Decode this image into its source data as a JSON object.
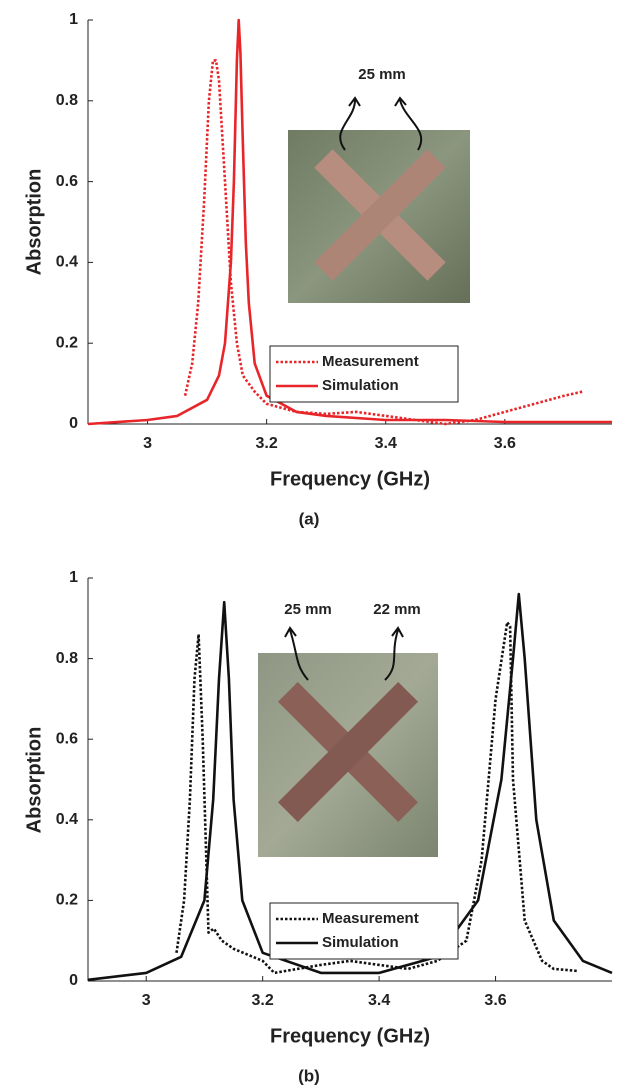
{
  "chart_data": [
    {
      "type": "line",
      "x_label": "Frequency (GHz)",
      "y_label": "Absorption",
      "caption": "(a)",
      "xlim": [
        2.9,
        3.78
      ],
      "xticks": [
        3,
        3.2,
        3.4,
        3.6
      ],
      "ylim": [
        0,
        1
      ],
      "yticks": [
        0,
        0.2,
        0.4,
        0.6,
        0.8,
        1
      ],
      "grid": false,
      "legend": "lower center",
      "annotations": [
        "25 mm"
      ],
      "series": [
        {
          "name": "Measurement",
          "color": "#e8262a",
          "style": "dotted",
          "x": [
            3.063,
            3.075,
            3.085,
            3.095,
            3.103,
            3.11,
            3.115,
            3.12,
            3.13,
            3.14,
            3.15,
            3.16,
            3.18,
            3.2,
            3.25,
            3.3,
            3.35,
            3.4,
            3.45,
            3.5,
            3.55,
            3.6,
            3.65,
            3.7,
            3.73
          ],
          "values": [
            0.07,
            0.15,
            0.3,
            0.55,
            0.8,
            0.9,
            0.9,
            0.85,
            0.6,
            0.35,
            0.2,
            0.12,
            0.08,
            0.05,
            0.03,
            0.025,
            0.03,
            0.02,
            0.01,
            0.0,
            0.01,
            0.03,
            0.05,
            0.07,
            0.08
          ]
        },
        {
          "name": "Simulation",
          "color": "#e8262a",
          "style": "solid",
          "x": [
            2.9,
            3.0,
            3.05,
            3.1,
            3.12,
            3.13,
            3.14,
            3.145,
            3.15,
            3.153,
            3.156,
            3.16,
            3.165,
            3.17,
            3.18,
            3.2,
            3.25,
            3.3,
            3.4,
            3.5,
            3.6,
            3.7,
            3.78
          ],
          "values": [
            0,
            0.01,
            0.02,
            0.06,
            0.12,
            0.2,
            0.4,
            0.6,
            0.9,
            1.0,
            0.92,
            0.7,
            0.45,
            0.3,
            0.15,
            0.07,
            0.03,
            0.02,
            0.01,
            0.01,
            0.005,
            0.005,
            0.005
          ]
        }
      ]
    },
    {
      "type": "line",
      "x_label": "Frequency (GHz)",
      "y_label": "Absorption",
      "caption": "(b)",
      "xlim": [
        2.9,
        3.8
      ],
      "xticks": [
        3,
        3.2,
        3.4,
        3.6
      ],
      "ylim": [
        0,
        1
      ],
      "yticks": [
        0,
        0.2,
        0.4,
        0.6,
        0.8,
        1
      ],
      "grid": false,
      "legend": "lower center",
      "annotations": [
        "25 mm",
        "22 mm"
      ],
      "series": [
        {
          "name": "Measurement",
          "color": "#111111",
          "style": "dotted",
          "x": [
            3.052,
            3.065,
            3.075,
            3.083,
            3.09,
            3.097,
            3.107,
            3.116,
            3.13,
            3.15,
            3.2,
            3.22,
            3.3,
            3.35,
            3.4,
            3.45,
            3.5,
            3.55,
            3.576,
            3.6,
            3.62,
            3.625,
            3.63,
            3.65,
            3.68,
            3.7,
            3.74
          ],
          "values": [
            0.07,
            0.2,
            0.45,
            0.75,
            0.86,
            0.6,
            0.12,
            0.13,
            0.1,
            0.08,
            0.05,
            0.02,
            0.04,
            0.05,
            0.04,
            0.03,
            0.05,
            0.1,
            0.3,
            0.7,
            0.89,
            0.88,
            0.5,
            0.15,
            0.05,
            0.03,
            0.025
          ]
        },
        {
          "name": "Simulation",
          "color": "#111111",
          "style": "solid",
          "x": [
            2.9,
            3.0,
            3.06,
            3.1,
            3.115,
            3.125,
            3.134,
            3.142,
            3.15,
            3.165,
            3.2,
            3.3,
            3.4,
            3.5,
            3.57,
            3.61,
            3.63,
            3.64,
            3.65,
            3.67,
            3.7,
            3.75,
            3.8
          ],
          "values": [
            0.003,
            0.02,
            0.06,
            0.2,
            0.45,
            0.75,
            0.94,
            0.75,
            0.45,
            0.2,
            0.07,
            0.02,
            0.02,
            0.06,
            0.2,
            0.5,
            0.8,
            0.96,
            0.8,
            0.4,
            0.15,
            0.05,
            0.02
          ]
        }
      ]
    }
  ]
}
